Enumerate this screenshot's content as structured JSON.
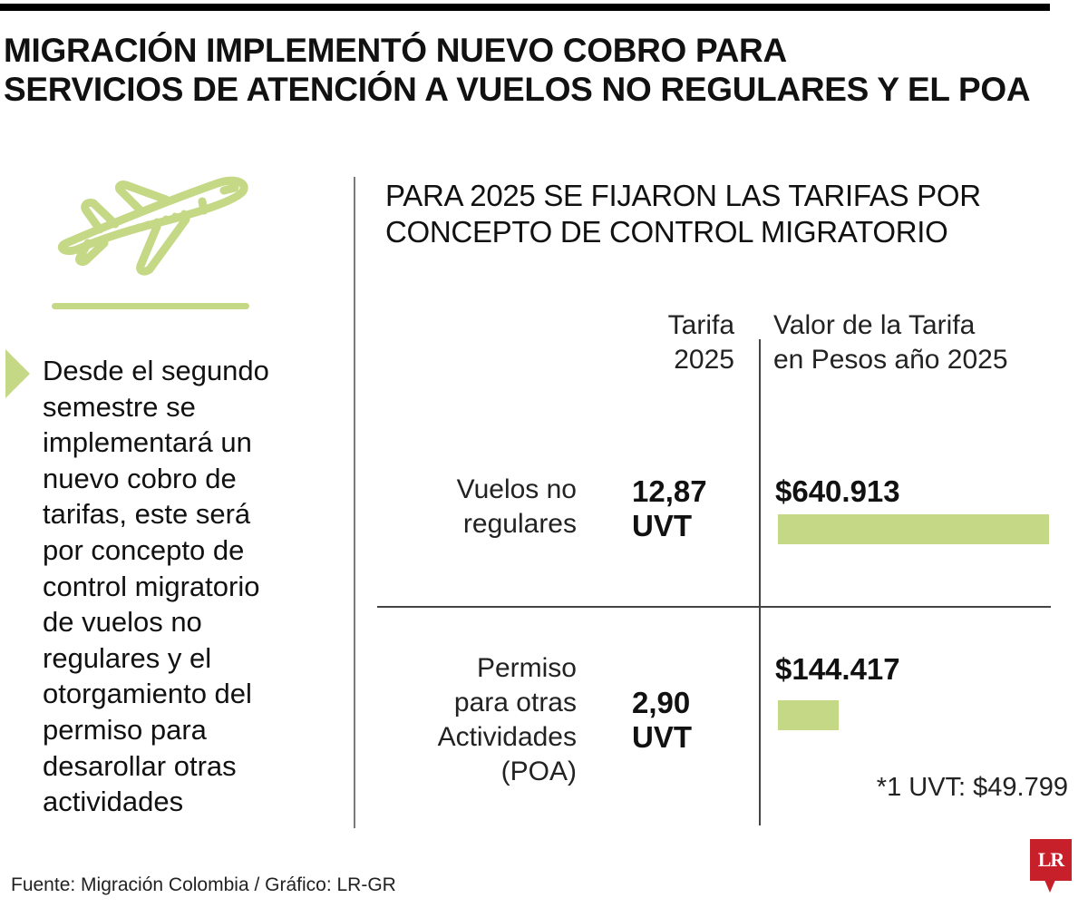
{
  "header": {
    "title_lines": [
      "MIGRACIÓN IMPLEMENTÓ NUEVO COBRO PARA",
      "SERVICIOS DE ATENCIÓN A VUELOS NO REGULARES Y EL POA"
    ]
  },
  "sidebar": {
    "icon": "airplane-takeoff-icon",
    "description_lines": [
      "Desde el segundo",
      "semestre se",
      "implementará un",
      "nuevo cobro de",
      "tarifas, este será",
      "por concepto de",
      "control migratorio",
      "de vuelos no",
      "regulares y el",
      "otorgamiento del",
      "permiso para",
      "desarollar otras",
      "actividades"
    ]
  },
  "main": {
    "subtitle_lines": [
      "PARA 2025 SE FIJARON LAS TARIFAS POR",
      "CONCEPTO DE CONTROL MIGRATORIO"
    ],
    "columns": {
      "tarifa_lines": [
        "Tarifa",
        "2025"
      ],
      "valor_lines": [
        "Valor de la Tarifa",
        "en Pesos año 2025"
      ]
    },
    "rows": [
      {
        "label_lines": [
          "Vuelos no",
          "regulares"
        ],
        "uvt_lines": [
          "12,87",
          "UVT"
        ],
        "value": "$640.913"
      },
      {
        "label_lines": [
          "Permiso",
          "para otras",
          "Actividades",
          "(POA)"
        ],
        "uvt_lines": [
          "2,90",
          "UVT"
        ],
        "value": "$144.417"
      }
    ],
    "footnote": "*1 UVT: $49.799"
  },
  "footer": {
    "source": "Fuente: Migración Colombia / Gráfico: LR-GR",
    "logo_text": "LR"
  },
  "colors": {
    "accent_green": "#c5d886",
    "brand_red": "#c8202a",
    "text": "#111111",
    "rule": "#000000"
  },
  "chart_data": {
    "type": "bar",
    "orientation": "horizontal",
    "title": "PARA 2025 SE FIJARON LAS TARIFAS POR CONCEPTO DE CONTROL MIGRATORIO",
    "categories": [
      "Vuelos no regulares",
      "Permiso para otras Actividades (POA)"
    ],
    "series": [
      {
        "name": "Tarifa 2025 (UVT)",
        "values": [
          12.87,
          2.9
        ]
      },
      {
        "name": "Valor de la Tarifa en Pesos año 2025",
        "values": [
          640913,
          144417
        ]
      }
    ],
    "value_labels": [
      "$640.913",
      "$144.417"
    ],
    "uvt_labels": [
      "12,87 UVT",
      "2,90 UVT"
    ],
    "annotation": "*1 UVT: $49.799",
    "xlabel": "",
    "ylabel": "",
    "bar_color": "#c5d886",
    "grid": false,
    "legend": "none"
  }
}
